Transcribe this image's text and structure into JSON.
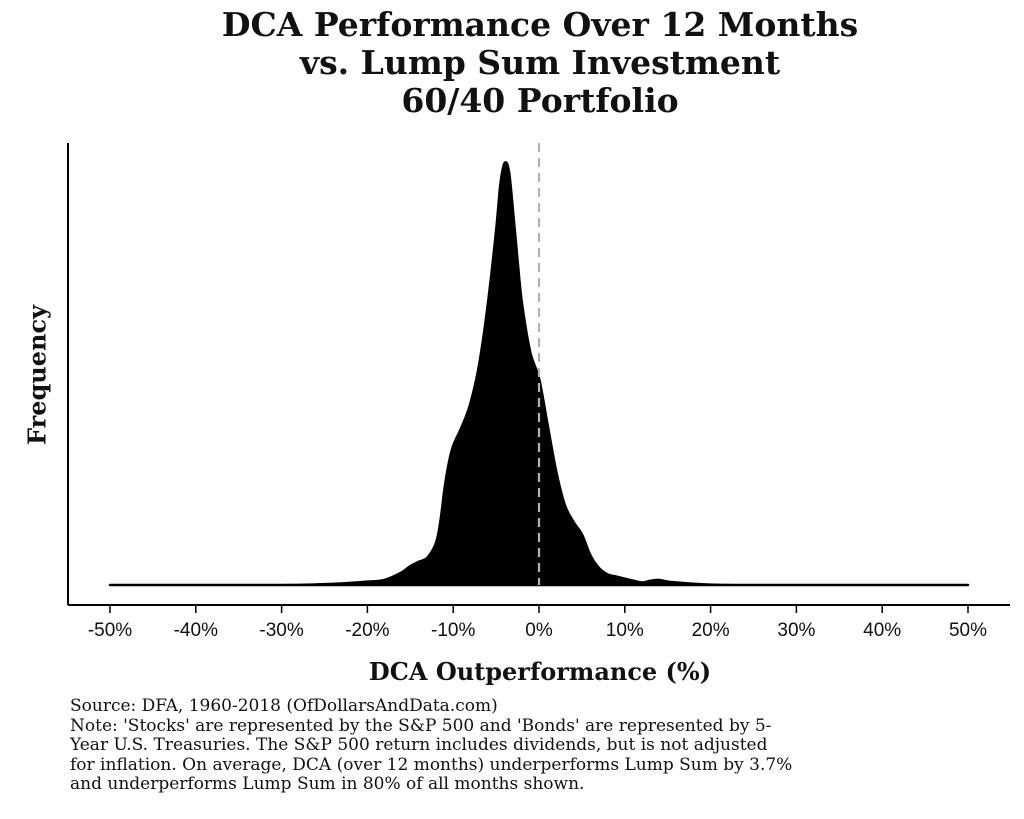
{
  "title_lines": [
    "DCA Performance Over 12 Months",
    "vs. Lump Sum Investment",
    "60/40 Portfolio"
  ],
  "caption_lines": [
    "Source:  DFA, 1960-2018 (OfDollarsAndData.com)",
    "Note: 'Stocks' are represented by the S&P 500 and 'Bonds' are represented by 5-",
    "Year U.S. Treasuries. The S&P 500 return includes dividends, but is not adjusted",
    "for inflation. On average, DCA (over 12 months) underperforms Lump Sum by 3.7%",
    "and underperforms Lump Sum in 80% of all months shown."
  ],
  "chart_data": {
    "type": "area",
    "title": "DCA Performance Over 12 Months vs. Lump Sum Investment 60/40 Portfolio",
    "xlabel": "DCA Outperformance (%)",
    "ylabel": "Frequency",
    "xlim": [
      -0.5,
      0.5
    ],
    "ylim": [
      0,
      1.0
    ],
    "x_ticks": [
      -0.5,
      -0.4,
      -0.3,
      -0.2,
      -0.1,
      0,
      0.1,
      0.2,
      0.3,
      0.4,
      0.5
    ],
    "x_tick_labels": [
      "-50%",
      "-40%",
      "-30%",
      "-20%",
      "-10%",
      "0%",
      "10%",
      "20%",
      "30%",
      "40%",
      "50%"
    ],
    "y_tick_labels_shown": false,
    "grid": false,
    "fill_color": "#000000",
    "reference_line": {
      "x": 0,
      "style": "dashed",
      "color": "#b3b3b3"
    },
    "series": [
      {
        "x": [
          -0.5,
          -0.3,
          -0.25,
          -0.22,
          -0.2,
          -0.18,
          -0.16,
          -0.15,
          -0.14,
          -0.13,
          -0.12,
          -0.115,
          -0.11,
          -0.105,
          -0.1,
          -0.09,
          -0.08,
          -0.07,
          -0.06,
          -0.05,
          -0.045,
          -0.04,
          -0.035,
          -0.03,
          -0.025,
          -0.02,
          -0.01,
          0,
          0.01,
          0.02,
          0.03,
          0.04,
          0.05,
          0.06,
          0.07,
          0.08,
          0.09,
          0.1,
          0.11,
          0.12,
          0.13,
          0.14,
          0.15,
          0.16,
          0.18,
          0.2,
          0.25,
          0.5
        ],
        "density": [
          0,
          0,
          0.002,
          0.005,
          0.008,
          0.012,
          0.03,
          0.045,
          0.055,
          0.065,
          0.1,
          0.15,
          0.23,
          0.29,
          0.33,
          0.375,
          0.43,
          0.52,
          0.66,
          0.84,
          0.95,
          1.0,
          0.98,
          0.88,
          0.77,
          0.67,
          0.55,
          0.49,
          0.38,
          0.27,
          0.19,
          0.15,
          0.12,
          0.07,
          0.04,
          0.025,
          0.02,
          0.015,
          0.01,
          0.006,
          0.01,
          0.012,
          0.008,
          0.006,
          0.003,
          0.001,
          0,
          0
        ]
      }
    ]
  }
}
